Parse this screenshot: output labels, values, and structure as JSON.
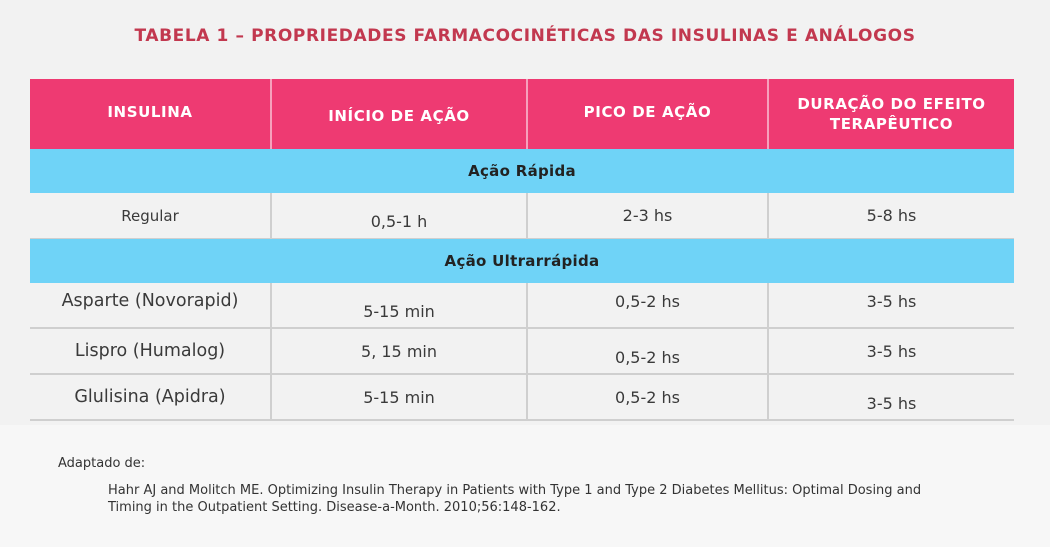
{
  "document": {
    "title": "TABELA 1 – PROPRIEDADES FARMACOCINÉTICAS DAS INSULINAS E ANÁLOGOS"
  },
  "table": {
    "headers": [
      "INSULINA",
      "INÍCIO DE AÇÃO",
      "PICO DE AÇÃO",
      "DURAÇÃO DO EFEITO TERAPÊUTICO"
    ],
    "groups": [
      {
        "label": "Ação Rápida",
        "rows": [
          {
            "insulina": "Regular",
            "inicio": "0,5-1 h",
            "pico": "2-3 hs",
            "duracao": "5-8 hs"
          }
        ]
      },
      {
        "label": "Ação Ultrarrápida",
        "rows": [
          {
            "insulina": "Asparte (Novorapid)",
            "inicio": "5-15 min",
            "pico": "0,5-2 hs",
            "duracao": "3-5 hs"
          },
          {
            "insulina": "Lispro (Humalog)",
            "inicio": "5, 15 min",
            "pico": "0,5-2 hs",
            "duracao": "3-5 hs"
          },
          {
            "insulina": "Glulisina (Apidra)",
            "inicio": "5-15 min",
            "pico": "0,5-2 hs",
            "duracao": "3-5 hs"
          }
        ]
      }
    ]
  },
  "source": {
    "label": "Adaptado de:",
    "reference": "Hahr AJ and Molitch ME. Optimizing Insulin Therapy in Patients with Type 1 and Type 2 Diabetes Mellitus: Optimal Dosing and Timing in the Outpatient Setting. Disease-a-Month. 2010;56:148-162."
  },
  "colors": {
    "title": "#c2384f",
    "header_bg": "#ee3a72",
    "group_bg": "#6fd3f7",
    "row_bg": "#f2f2f2"
  }
}
